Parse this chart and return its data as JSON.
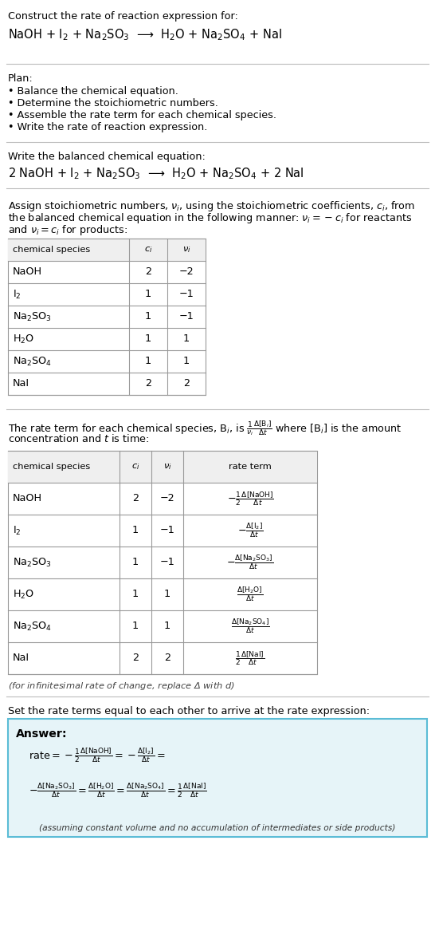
{
  "bg_color": "#ffffff",
  "title_line1": "Construct the rate of reaction expression for:",
  "reaction_unbalanced": "NaOH + I$_2$ + Na$_2$SO$_3$  ⟶  H$_2$O + Na$_2$SO$_4$ + NaI",
  "plan_header": "Plan:",
  "plan_items": [
    "• Balance the chemical equation.",
    "• Determine the stoichiometric numbers.",
    "• Assemble the rate term for each chemical species.",
    "• Write the rate of reaction expression."
  ],
  "balanced_header": "Write the balanced chemical equation:",
  "reaction_balanced": "2 NaOH + I$_2$ + Na$_2$SO$_3$  ⟶  H$_2$O + Na$_2$SO$_4$ + 2 NaI",
  "stoich_lines": [
    "Assign stoichiometric numbers, $\\nu_i$, using the stoichiometric coefficients, $c_i$, from",
    "the balanced chemical equation in the following manner: $\\nu_i = -c_i$ for reactants",
    "and $\\nu_i = c_i$ for products:"
  ],
  "table1_cols": [
    "chemical species",
    "$c_i$",
    "$\\nu_i$"
  ],
  "table1_data": [
    [
      "NaOH",
      "2",
      "−2"
    ],
    [
      "I$_2$",
      "1",
      "−1"
    ],
    [
      "Na$_2$SO$_3$",
      "1",
      "−1"
    ],
    [
      "H$_2$O",
      "1",
      "1"
    ],
    [
      "Na$_2$SO$_4$",
      "1",
      "1"
    ],
    [
      "NaI",
      "2",
      "2"
    ]
  ],
  "rate_lines": [
    "The rate term for each chemical species, B$_i$, is $\\frac{1}{\\nu_i}\\frac{\\Delta[\\mathrm{B}_i]}{\\Delta t}$ where [B$_i$] is the amount",
    "concentration and $t$ is time:"
  ],
  "table2_cols": [
    "chemical species",
    "$c_i$",
    "$\\nu_i$",
    "rate term"
  ],
  "table2_data": [
    [
      "NaOH",
      "2",
      "−2",
      "$-\\frac{1}{2}\\frac{\\Delta[\\mathrm{NaOH}]}{\\Delta t}$"
    ],
    [
      "I$_2$",
      "1",
      "−1",
      "$-\\frac{\\Delta[\\mathrm{I_2}]}{\\Delta t}$"
    ],
    [
      "Na$_2$SO$_3$",
      "1",
      "−1",
      "$-\\frac{\\Delta[\\mathrm{Na_2SO_3}]}{\\Delta t}$"
    ],
    [
      "H$_2$O",
      "1",
      "1",
      "$\\frac{\\Delta[\\mathrm{H_2O}]}{\\Delta t}$"
    ],
    [
      "Na$_2$SO$_4$",
      "1",
      "1",
      "$\\frac{\\Delta[\\mathrm{Na_2SO_4}]}{\\Delta t}$"
    ],
    [
      "NaI",
      "2",
      "2",
      "$\\frac{1}{2}\\frac{\\Delta[\\mathrm{NaI}]}{\\Delta t}$"
    ]
  ],
  "infinitesimal_note": "(for infinitesimal rate of change, replace Δ with $d$)",
  "equal_header": "Set the rate terms equal to each other to arrive at the rate expression:",
  "answer_box_color": "#e6f4f8",
  "answer_box_border": "#5bbcd6",
  "answer_label": "Answer:",
  "rate_expr_line1": "$\\mathrm{rate} = -\\frac{1}{2}\\frac{\\Delta[\\mathrm{NaOH}]}{\\Delta t} = -\\frac{\\Delta[\\mathrm{I_2}]}{\\Delta t} =$",
  "rate_expr_line2": "$-\\frac{\\Delta[\\mathrm{Na_2SO_3}]}{\\Delta t} = \\frac{\\Delta[\\mathrm{H_2O}]}{\\Delta t} = \\frac{\\Delta[\\mathrm{Na_2SO_4}]}{\\Delta t} = \\frac{1}{2}\\frac{\\Delta[\\mathrm{NaI}]}{\\Delta t}$",
  "assuming_note": "(assuming constant volume and no accumulation of intermediates or side products)"
}
